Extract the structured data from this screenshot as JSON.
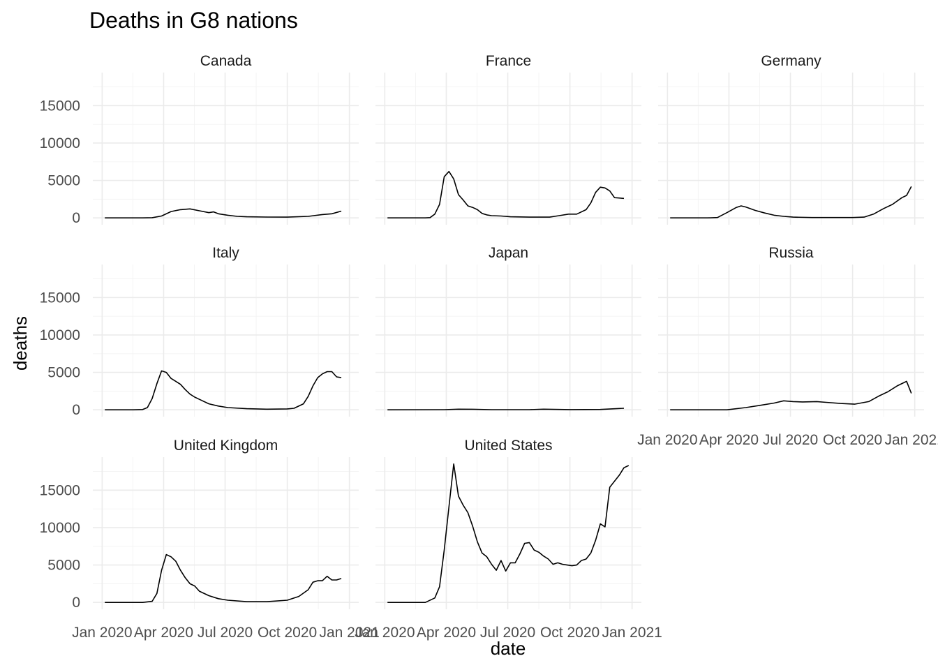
{
  "chart_data": {
    "type": "line",
    "title": "Deaths in G8 nations",
    "xlabel": "date",
    "ylabel": "deaths",
    "facet_by": "country",
    "facet_cols": 3,
    "x_type": "date",
    "xlim": [
      "2020-01-01",
      "2021-01-01"
    ],
    "x_ticks": [
      "2020-01-01",
      "2020-04-01",
      "2020-07-01",
      "2020-10-01",
      "2021-01-01"
    ],
    "x_tick_labels": [
      "Jan 2020",
      "Apr 2020",
      "Jul 2020",
      "Oct 2020",
      "Jan 2021"
    ],
    "ylim": [
      0,
      18500
    ],
    "y_ticks": [
      0,
      5000,
      10000,
      15000
    ],
    "y_tick_labels": [
      "0",
      "5000",
      "10000",
      "15000"
    ],
    "grid": true,
    "line_color": "#000000",
    "panels": [
      {
        "name": "Canada",
        "x": [
          "2020-01-05",
          "2020-02-02",
          "2020-03-01",
          "2020-03-15",
          "2020-03-29",
          "2020-04-12",
          "2020-04-26",
          "2020-05-10",
          "2020-05-24",
          "2020-06-07",
          "2020-06-14",
          "2020-06-21",
          "2020-07-05",
          "2020-07-19",
          "2020-08-02",
          "2020-09-01",
          "2020-10-01",
          "2020-11-01",
          "2020-11-22",
          "2020-12-06",
          "2020-12-20"
        ],
        "y": [
          0,
          0,
          0,
          30,
          250,
          850,
          1100,
          1200,
          950,
          700,
          800,
          550,
          350,
          200,
          150,
          110,
          100,
          200,
          450,
          550,
          900
        ]
      },
      {
        "name": "France",
        "x": [
          "2020-01-05",
          "2020-02-02",
          "2020-03-01",
          "2020-03-08",
          "2020-03-15",
          "2020-03-22",
          "2020-03-29",
          "2020-04-05",
          "2020-04-12",
          "2020-04-19",
          "2020-04-26",
          "2020-05-03",
          "2020-05-10",
          "2020-05-17",
          "2020-05-24",
          "2020-05-31",
          "2020-06-07",
          "2020-06-21",
          "2020-07-05",
          "2020-08-02",
          "2020-09-01",
          "2020-09-15",
          "2020-09-29",
          "2020-10-11",
          "2020-10-25",
          "2020-11-01",
          "2020-11-08",
          "2020-11-15",
          "2020-11-22",
          "2020-11-29",
          "2020-12-06",
          "2020-12-20"
        ],
        "y": [
          0,
          0,
          0,
          40,
          500,
          1800,
          5500,
          6200,
          5200,
          3100,
          2400,
          1600,
          1400,
          1100,
          600,
          400,
          300,
          250,
          150,
          100,
          100,
          300,
          500,
          500,
          1100,
          2000,
          3400,
          4100,
          4000,
          3600,
          2700,
          2600
        ]
      },
      {
        "name": "Germany",
        "x": [
          "2020-01-05",
          "2020-03-01",
          "2020-03-15",
          "2020-03-29",
          "2020-04-12",
          "2020-04-19",
          "2020-04-26",
          "2020-05-10",
          "2020-05-24",
          "2020-06-07",
          "2020-06-21",
          "2020-07-05",
          "2020-08-02",
          "2020-09-01",
          "2020-10-01",
          "2020-10-18",
          "2020-11-01",
          "2020-11-15",
          "2020-11-29",
          "2020-12-13",
          "2020-12-20",
          "2020-12-27"
        ],
        "y": [
          0,
          0,
          50,
          700,
          1400,
          1600,
          1450,
          1000,
          650,
          350,
          200,
          100,
          50,
          50,
          50,
          100,
          500,
          1200,
          1800,
          2700,
          3000,
          4200
        ]
      },
      {
        "name": "Italy",
        "x": [
          "2020-01-05",
          "2020-02-16",
          "2020-03-01",
          "2020-03-08",
          "2020-03-15",
          "2020-03-22",
          "2020-03-29",
          "2020-04-05",
          "2020-04-12",
          "2020-04-19",
          "2020-04-26",
          "2020-05-03",
          "2020-05-10",
          "2020-05-17",
          "2020-05-24",
          "2020-06-07",
          "2020-06-21",
          "2020-07-05",
          "2020-08-02",
          "2020-09-01",
          "2020-10-01",
          "2020-10-11",
          "2020-10-25",
          "2020-11-01",
          "2020-11-08",
          "2020-11-15",
          "2020-11-22",
          "2020-11-29",
          "2020-12-06",
          "2020-12-13",
          "2020-12-20"
        ],
        "y": [
          0,
          0,
          40,
          300,
          1500,
          3500,
          5200,
          5000,
          4200,
          3800,
          3400,
          2700,
          2100,
          1700,
          1400,
          800,
          500,
          300,
          150,
          80,
          120,
          200,
          800,
          1800,
          3200,
          4300,
          4800,
          5100,
          5100,
          4400,
          4300
        ]
      },
      {
        "name": "Japan",
        "x": [
          "2020-01-05",
          "2020-03-29",
          "2020-04-19",
          "2020-05-10",
          "2020-06-07",
          "2020-08-02",
          "2020-08-23",
          "2020-10-01",
          "2020-11-15",
          "2020-12-20"
        ],
        "y": [
          0,
          20,
          80,
          70,
          20,
          20,
          80,
          30,
          50,
          200
        ]
      },
      {
        "name": "Russia",
        "x": [
          "2020-01-05",
          "2020-03-29",
          "2020-04-26",
          "2020-05-17",
          "2020-06-07",
          "2020-06-21",
          "2020-07-05",
          "2020-07-19",
          "2020-08-09",
          "2020-08-23",
          "2020-09-13",
          "2020-10-04",
          "2020-10-25",
          "2020-11-08",
          "2020-11-22",
          "2020-12-06",
          "2020-12-20",
          "2020-12-27"
        ],
        "y": [
          0,
          0,
          300,
          600,
          900,
          1200,
          1100,
          1050,
          1100,
          1000,
          850,
          750,
          1100,
          1800,
          2400,
          3200,
          3800,
          2200
        ]
      },
      {
        "name": "United Kingdom",
        "x": [
          "2020-01-05",
          "2020-03-01",
          "2020-03-15",
          "2020-03-22",
          "2020-03-29",
          "2020-04-05",
          "2020-04-12",
          "2020-04-19",
          "2020-04-26",
          "2020-05-03",
          "2020-05-10",
          "2020-05-17",
          "2020-05-24",
          "2020-06-07",
          "2020-06-21",
          "2020-07-05",
          "2020-08-02",
          "2020-09-01",
          "2020-10-01",
          "2020-10-18",
          "2020-11-01",
          "2020-11-08",
          "2020-11-15",
          "2020-11-22",
          "2020-11-29",
          "2020-12-06",
          "2020-12-13",
          "2020-12-20"
        ],
        "y": [
          0,
          0,
          150,
          1200,
          4300,
          6400,
          6100,
          5500,
          4300,
          3300,
          2500,
          2200,
          1500,
          900,
          500,
          300,
          100,
          100,
          300,
          800,
          1700,
          2700,
          2900,
          2900,
          3500,
          3000,
          3000,
          3200
        ]
      },
      {
        "name": "United States",
        "x": [
          "2020-01-05",
          "2020-03-01",
          "2020-03-15",
          "2020-03-22",
          "2020-03-29",
          "2020-04-05",
          "2020-04-12",
          "2020-04-19",
          "2020-04-26",
          "2020-05-03",
          "2020-05-10",
          "2020-05-17",
          "2020-05-24",
          "2020-05-31",
          "2020-06-07",
          "2020-06-14",
          "2020-06-21",
          "2020-06-28",
          "2020-07-05",
          "2020-07-12",
          "2020-07-19",
          "2020-07-26",
          "2020-08-02",
          "2020-08-09",
          "2020-08-16",
          "2020-08-23",
          "2020-08-30",
          "2020-09-06",
          "2020-09-13",
          "2020-09-20",
          "2020-09-27",
          "2020-10-04",
          "2020-10-11",
          "2020-10-18",
          "2020-10-25",
          "2020-11-01",
          "2020-11-08",
          "2020-11-15",
          "2020-11-22",
          "2020-11-29",
          "2020-12-06",
          "2020-12-13",
          "2020-12-20",
          "2020-12-27"
        ],
        "y": [
          0,
          0,
          600,
          2100,
          7000,
          12800,
          18500,
          14200,
          13000,
          12000,
          10200,
          8100,
          6600,
          6100,
          5100,
          4300,
          5600,
          4200,
          5300,
          5300,
          6500,
          7900,
          8000,
          7000,
          6700,
          6200,
          5800,
          5100,
          5300,
          5100,
          5000,
          4900,
          5000,
          5600,
          5800,
          6600,
          8300,
          10500,
          10100,
          15400,
          16200,
          17000,
          18000,
          18300
        ]
      }
    ]
  }
}
